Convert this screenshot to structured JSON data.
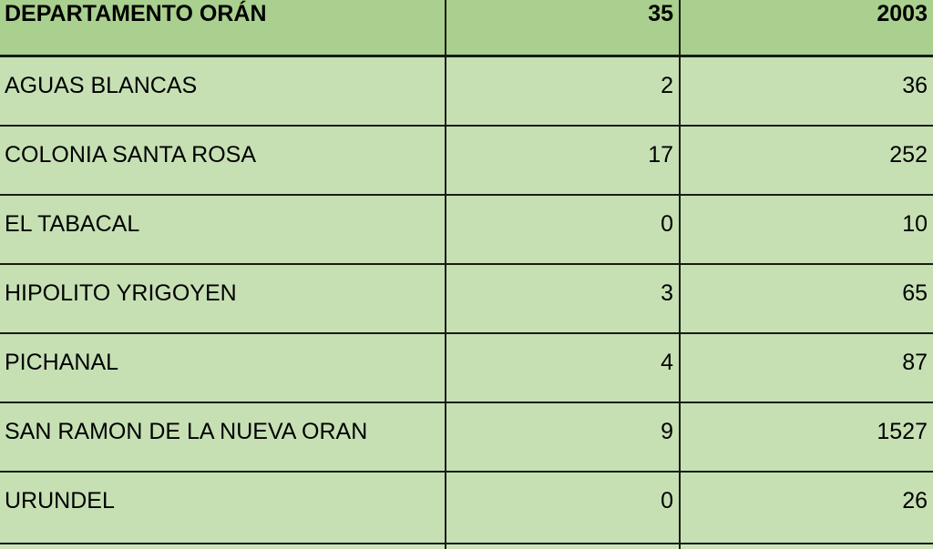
{
  "table": {
    "header": {
      "name": "DEPARTAMENTO ORÁN",
      "value1": "35",
      "value2": "2003"
    },
    "rows": [
      {
        "name": "AGUAS BLANCAS",
        "value1": "2",
        "value2": "36"
      },
      {
        "name": "COLONIA SANTA ROSA",
        "value1": "17",
        "value2": "252"
      },
      {
        "name": "EL TABACAL",
        "value1": "0",
        "value2": "10"
      },
      {
        "name": "HIPOLITO YRIGOYEN",
        "value1": "3",
        "value2": "65"
      },
      {
        "name": "PICHANAL",
        "value1": "4",
        "value2": "87"
      },
      {
        "name": "SAN RAMON DE LA NUEVA ORAN",
        "value1": "9",
        "value2": "1527"
      },
      {
        "name": "URUNDEL",
        "value1": "0",
        "value2": "26"
      }
    ],
    "colors": {
      "header_bg": "#a9d08e",
      "row_bg": "#c6e0b4",
      "border": "#161d12",
      "text": "#000000"
    }
  }
}
